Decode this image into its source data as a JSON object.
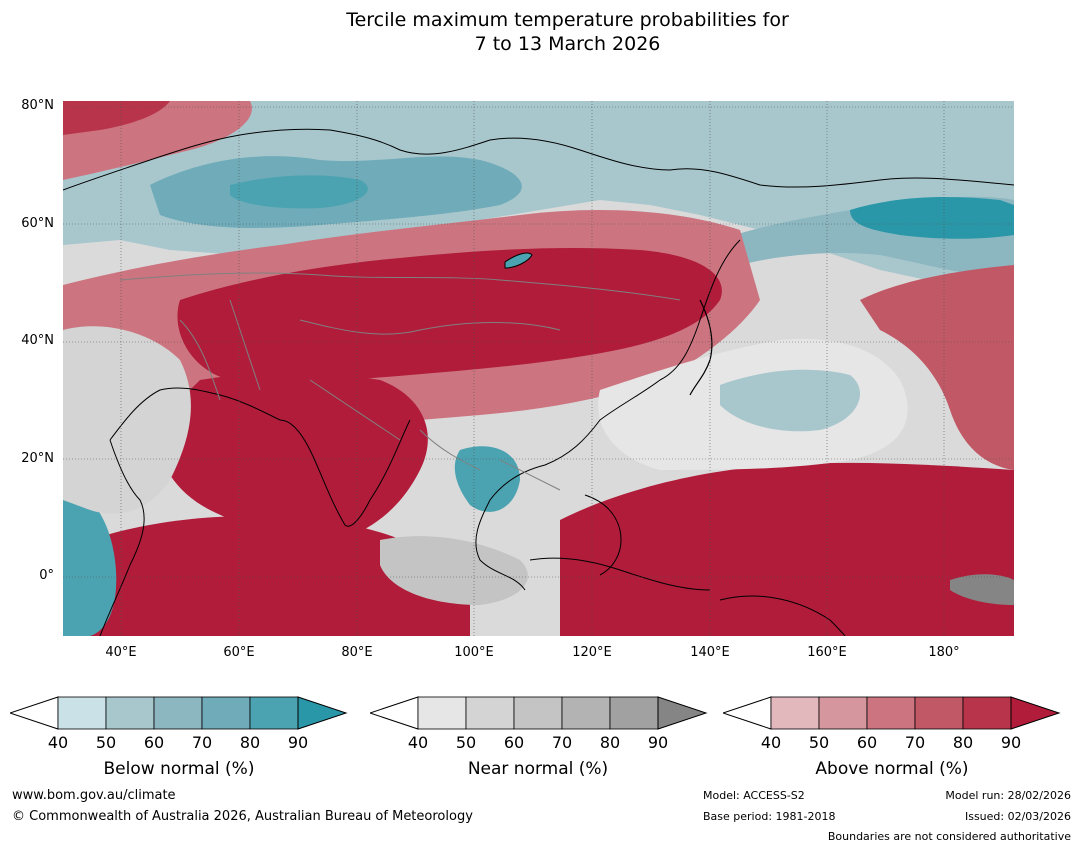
{
  "title": {
    "line1": "Tercile maximum temperature probabilities for",
    "line2": "7 to 13 March 2026"
  },
  "map": {
    "lat_labels": [
      "80°N",
      "60°N",
      "40°N",
      "20°N",
      "0°"
    ],
    "lon_labels": [
      "40°E",
      "60°E",
      "80°E",
      "100°E",
      "120°E",
      "140°E",
      "160°E",
      "180°"
    ]
  },
  "legends": [
    {
      "name": "below",
      "title": "Below normal (%)",
      "ticks": [
        "40",
        "50",
        "60",
        "70",
        "80",
        "90"
      ],
      "colors": [
        "#c9e1e7",
        "#a8c7cd",
        "#8cb6c0",
        "#6fabb8",
        "#4ba3b1",
        "#2a97a8"
      ]
    },
    {
      "name": "near",
      "title": "Near normal (%)",
      "ticks": [
        "40",
        "50",
        "60",
        "70",
        "80",
        "90"
      ],
      "colors": [
        "#e6e6e6",
        "#d4d4d4",
        "#c4c4c4",
        "#b3b3b3",
        "#a1a1a1",
        "#858585"
      ]
    },
    {
      "name": "above",
      "title": "Above normal (%)",
      "ticks": [
        "40",
        "50",
        "60",
        "70",
        "80",
        "90"
      ],
      "colors": [
        "#e3b8bd",
        "#d6969d",
        "#cc7580",
        "#c15866",
        "#b8344a",
        "#b01c3a"
      ]
    }
  ],
  "footer": {
    "website": "www.bom.gov.au/climate",
    "copyright": "© Commonwealth of Australia 2026, Australian Bureau of Meteorology",
    "model": "Model: ACCESS-S2",
    "base_period": "Base period: 1981-2018",
    "model_run": "Model run: 28/02/2026",
    "issued": "Issued: 02/03/2026",
    "disclaimer": "Boundaries are not considered authoritative"
  }
}
